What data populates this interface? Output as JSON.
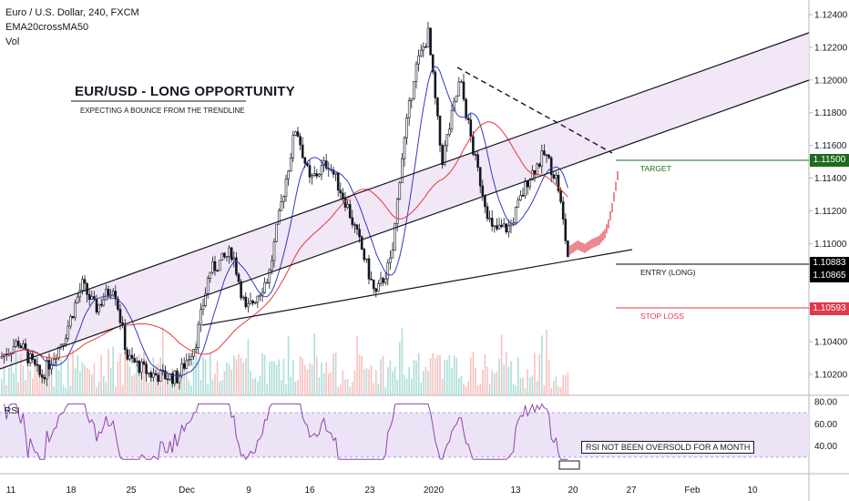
{
  "header": {
    "symbol_line": "Euro / U.S. Dollar, 240, FXCM",
    "indicator_ema": "EMA20crossMA50",
    "indicator_vol": "Vol"
  },
  "annotation": {
    "title": "EUR/USD - LONG OPPORTUNITY",
    "subtitle": "EXPECTING A BOUNCE FROM THE TRENDLINE"
  },
  "levels": {
    "target": {
      "label": "TARGET",
      "price": "1.11500",
      "color": "#1e6b1e"
    },
    "entry": {
      "label": "ENTRY (LONG)",
      "price": "1.10865",
      "color": "#000000"
    },
    "stop": {
      "label": "STOP LOSS",
      "price": "1.10593",
      "color": "#e0394a"
    },
    "last_price": "1.10883"
  },
  "rsi": {
    "title": "RSI",
    "note": "RSI NOT BEEN OVERSOLD FOR A MONTH",
    "band_color": "#ede3f7",
    "line_color": "#8e44ad",
    "ticks": [
      "80.00",
      "60.00",
      "40.00"
    ]
  },
  "colors": {
    "up": "#26a69a",
    "down": "#131722",
    "ema_fast": "#2f3cbf",
    "ma_slow": "#e53935",
    "channel_fill": "#f1e4f5",
    "projection": "#e0394a"
  },
  "chart_data": {
    "type": "candlestick",
    "title": "Euro / U.S. Dollar, 240, FXCM",
    "x_ticks": [
      "11",
      "18",
      "25",
      "Dec",
      "9",
      "16",
      "23",
      "2020",
      "13",
      "20",
      "27",
      "Feb",
      "10"
    ],
    "y_ticks": [
      "1.12400",
      "1.12200",
      "1.12000",
      "1.11800",
      "1.11600",
      "1.11400",
      "1.11200",
      "1.11000",
      "1.10800",
      "1.10600",
      "1.10400",
      "1.10200"
    ],
    "ylim": [
      1.1008,
      1.1249
    ],
    "approx_close_path": [
      [
        "11",
        1.1026
      ],
      [
        "18",
        1.1052
      ],
      [
        "25",
        1.102
      ],
      [
        "Dec",
        1.1018
      ],
      [
        "9",
        1.1078
      ],
      [
        "16",
        1.113
      ],
      [
        "23",
        1.1077
      ],
      [
        "2020",
        1.1222
      ],
      [
        "13",
        1.1132
      ],
      [
        "20",
        1.1092
      ]
    ],
    "grid": true,
    "legend": "top-left"
  }
}
